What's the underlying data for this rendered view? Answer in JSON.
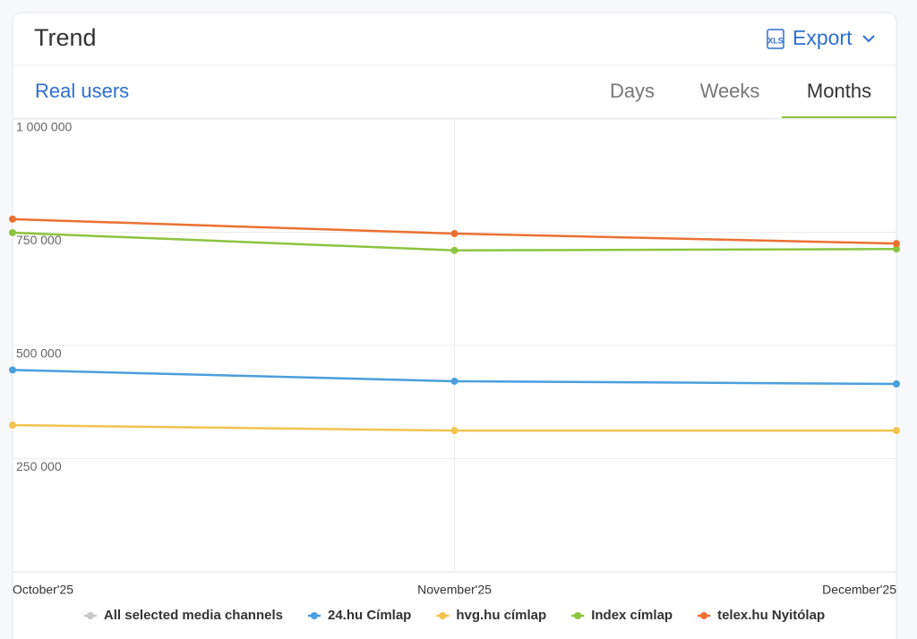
{
  "header": {
    "title": "Trend",
    "export": "Export",
    "metric": "Real users",
    "tabs": [
      "Days",
      "Weeks",
      "Months"
    ],
    "active_tab": "Months"
  },
  "chart_data": {
    "type": "line",
    "categories": [
      "October'25",
      "November'25",
      "December'25"
    ],
    "series": [
      {
        "name": "All selected media channels",
        "color": "#c8c8c8",
        "values": [
          null,
          null,
          null
        ]
      },
      {
        "name": "24.hu Címlap",
        "color": "#4a9fdc",
        "values": [
          446000,
          421000,
          415000
        ]
      },
      {
        "name": "hvg.hu címlap",
        "color": "#f2c44e",
        "values": [
          324000,
          312000,
          312000
        ]
      },
      {
        "name": "Index címlap",
        "color": "#8cc43f",
        "values": [
          749000,
          710000,
          713000
        ]
      },
      {
        "name": "telex.hu Nyitólap",
        "color": "#ec7032",
        "values": [
          779000,
          747000,
          725000
        ]
      }
    ],
    "ylim": [
      0,
      1000000
    ],
    "yticks": [
      {
        "value": 250000,
        "label": "250 000"
      },
      {
        "value": 500000,
        "label": "500 000"
      },
      {
        "value": 750000,
        "label": "750 000"
      },
      {
        "value": 1000000,
        "label": "1 000 000"
      }
    ],
    "grid": true
  }
}
